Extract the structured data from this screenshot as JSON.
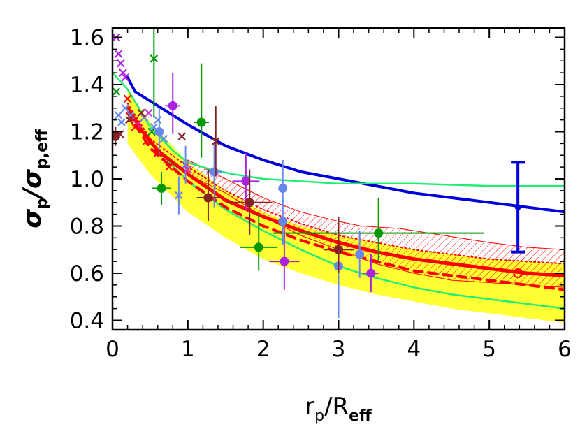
{
  "chart_data": {
    "type": "scatter",
    "title": "",
    "xlabel": {
      "main": "r",
      "sub1": "p",
      "mid": "/R",
      "sub2": "eff"
    },
    "ylabel": {
      "main": "σ",
      "sub1": "p",
      "mid": "/σ",
      "sub2": "p,eff"
    },
    "xlim": [
      0,
      6
    ],
    "ylim": [
      0.36,
      1.64
    ],
    "x_ticks": [
      {
        "v": 0,
        "label": "0"
      },
      {
        "v": 1,
        "label": "1"
      },
      {
        "v": 2,
        "label": "2"
      },
      {
        "v": 3,
        "label": "3"
      },
      {
        "v": 4,
        "label": "4"
      },
      {
        "v": 5,
        "label": "5"
      },
      {
        "v": 6,
        "label": "6"
      }
    ],
    "y_ticks": [
      {
        "v": 0.4,
        "label": "0.4"
      },
      {
        "v": 0.6,
        "label": "0.6"
      },
      {
        "v": 0.8,
        "label": "0.8"
      },
      {
        "v": 1.0,
        "label": "1.0"
      },
      {
        "v": 1.2,
        "label": "1.2"
      },
      {
        "v": 1.4,
        "label": "1.4"
      },
      {
        "v": 1.6,
        "label": "1.6"
      }
    ],
    "grid": false,
    "colors": {
      "red": "#ff0000",
      "blue": "#0000dd",
      "green": "#009900",
      "mint": "#22ee77",
      "yellow": "#ffff33",
      "purple": "#aa22dd",
      "lightblue": "#6688ee",
      "darkred": "#882222",
      "magenta": "#cc33dd"
    },
    "bands": [
      {
        "name": "yellow band",
        "color": "#ffff33",
        "upper": [
          [
            0.2,
            1.38
          ],
          [
            0.5,
            1.24
          ],
          [
            1.0,
            1.07
          ],
          [
            1.5,
            0.95
          ],
          [
            2.0,
            0.86
          ],
          [
            2.5,
            0.8
          ],
          [
            3.0,
            0.76
          ],
          [
            3.5,
            0.73
          ],
          [
            4.0,
            0.7
          ],
          [
            4.5,
            0.68
          ],
          [
            5.0,
            0.66
          ],
          [
            5.5,
            0.65
          ],
          [
            6.0,
            0.64
          ]
        ],
        "lower": [
          [
            0.2,
            1.15
          ],
          [
            0.5,
            1.02
          ],
          [
            1.0,
            0.86
          ],
          [
            1.5,
            0.75
          ],
          [
            2.0,
            0.66
          ],
          [
            2.5,
            0.6
          ],
          [
            3.0,
            0.55
          ],
          [
            3.5,
            0.51
          ],
          [
            4.0,
            0.48
          ],
          [
            4.5,
            0.45
          ],
          [
            5.0,
            0.43
          ],
          [
            5.5,
            0.41
          ],
          [
            6.0,
            0.39
          ]
        ]
      },
      {
        "name": "hatched band",
        "color": "#ff0000",
        "upper": [
          [
            1.0,
            1.08
          ],
          [
            1.5,
            1.0
          ],
          [
            2.0,
            0.92
          ],
          [
            2.5,
            0.86
          ],
          [
            3.0,
            0.82
          ],
          [
            3.3,
            0.8
          ],
          [
            3.8,
            0.79
          ],
          [
            4.2,
            0.77
          ],
          [
            4.6,
            0.75
          ],
          [
            5.0,
            0.73
          ],
          [
            5.5,
            0.71
          ],
          [
            6.0,
            0.7
          ]
        ],
        "lower": [
          [
            1.0,
            1.02
          ],
          [
            1.5,
            0.94
          ],
          [
            2.0,
            0.84
          ],
          [
            2.5,
            0.76
          ],
          [
            3.0,
            0.7
          ],
          [
            3.5,
            0.64
          ],
          [
            4.0,
            0.6
          ],
          [
            4.5,
            0.57
          ],
          [
            5.0,
            0.56
          ],
          [
            5.5,
            0.55
          ],
          [
            6.0,
            0.54
          ]
        ]
      }
    ],
    "lines": [
      {
        "name": "blue solid",
        "color": "#0000dd",
        "width": 4,
        "dash": "",
        "points": [
          [
            0.2,
            1.43
          ],
          [
            0.3,
            1.37
          ],
          [
            0.5,
            1.33
          ],
          [
            0.8,
            1.27
          ],
          [
            1.0,
            1.23
          ],
          [
            1.5,
            1.14
          ],
          [
            2.0,
            1.08
          ],
          [
            2.5,
            1.03
          ],
          [
            3.0,
            1.0
          ],
          [
            3.5,
            0.97
          ],
          [
            4.0,
            0.94
          ],
          [
            4.5,
            0.92
          ],
          [
            5.0,
            0.9
          ],
          [
            5.5,
            0.88
          ],
          [
            6.0,
            0.86
          ]
        ]
      },
      {
        "name": "mint upper",
        "color": "#22ee77",
        "width": 2.5,
        "dash": "",
        "points": [
          [
            0.0,
            1.45
          ],
          [
            0.2,
            1.38
          ],
          [
            0.5,
            1.22
          ],
          [
            0.8,
            1.12
          ],
          [
            1.0,
            1.07
          ],
          [
            1.3,
            1.04
          ],
          [
            1.6,
            1.02
          ],
          [
            2.0,
            1.0
          ],
          [
            2.5,
            0.99
          ],
          [
            3.0,
            0.98
          ],
          [
            4.0,
            0.98
          ],
          [
            5.0,
            0.97
          ],
          [
            6.0,
            0.97
          ]
        ]
      },
      {
        "name": "mint lower",
        "color": "#22ee77",
        "width": 2.5,
        "dash": "",
        "points": [
          [
            0.2,
            1.3
          ],
          [
            0.5,
            1.15
          ],
          [
            1.0,
            0.99
          ],
          [
            1.5,
            0.87
          ],
          [
            2.0,
            0.78
          ],
          [
            2.5,
            0.7
          ],
          [
            3.0,
            0.63
          ],
          [
            3.5,
            0.58
          ],
          [
            4.0,
            0.54
          ],
          [
            4.5,
            0.51
          ],
          [
            5.0,
            0.49
          ],
          [
            5.5,
            0.47
          ],
          [
            6.0,
            0.45
          ]
        ]
      },
      {
        "name": "red solid",
        "color": "#ff0000",
        "width": 5,
        "dash": "",
        "points": [
          [
            0.2,
            1.3
          ],
          [
            0.4,
            1.2
          ],
          [
            0.6,
            1.12
          ],
          [
            1.0,
            1.02
          ],
          [
            1.5,
            0.91
          ],
          [
            2.0,
            0.84
          ],
          [
            2.5,
            0.78
          ],
          [
            3.0,
            0.73
          ],
          [
            3.5,
            0.69
          ],
          [
            4.0,
            0.66
          ],
          [
            4.5,
            0.64
          ],
          [
            5.0,
            0.62
          ],
          [
            5.5,
            0.6
          ],
          [
            6.0,
            0.59
          ]
        ]
      },
      {
        "name": "red dashed",
        "color": "#ff0000",
        "width": 4,
        "dash": "12 9",
        "points": [
          [
            0.2,
            1.28
          ],
          [
            0.5,
            1.13
          ],
          [
            1.0,
            0.99
          ],
          [
            1.5,
            0.88
          ],
          [
            2.0,
            0.8
          ],
          [
            2.5,
            0.74
          ],
          [
            3.0,
            0.69
          ],
          [
            3.5,
            0.65
          ],
          [
            4.0,
            0.61
          ],
          [
            4.5,
            0.59
          ],
          [
            5.0,
            0.57
          ],
          [
            5.5,
            0.55
          ],
          [
            6.0,
            0.53
          ]
        ]
      },
      {
        "name": "red dotted",
        "color": "#ff0000",
        "width": 2,
        "dash": "2 4",
        "points": [
          [
            0.2,
            1.32
          ],
          [
            0.5,
            1.17
          ],
          [
            1.0,
            1.05
          ],
          [
            1.5,
            0.95
          ],
          [
            2.0,
            0.87
          ],
          [
            2.5,
            0.81
          ],
          [
            3.0,
            0.76
          ],
          [
            3.5,
            0.73
          ],
          [
            4.0,
            0.7
          ],
          [
            4.5,
            0.68
          ],
          [
            5.0,
            0.66
          ],
          [
            5.5,
            0.65
          ],
          [
            6.0,
            0.64
          ]
        ]
      }
    ],
    "points": [
      {
        "x": 0.65,
        "y": 0.96,
        "c": "#009900",
        "m": "dot",
        "xe": 0.12,
        "yl": 0.07,
        "yh": 0.07
      },
      {
        "x": 1.18,
        "y": 1.24,
        "c": "#009900",
        "m": "dot",
        "xe": 0.1,
        "yl": 0.15,
        "yh": 0.25
      },
      {
        "x": 1.94,
        "y": 0.71,
        "c": "#009900",
        "m": "dot",
        "xe": 0.25,
        "yl": 0.1,
        "yh": 0.14
      },
      {
        "x": 3.53,
        "y": 0.77,
        "c": "#009900",
        "m": "dot",
        "xe": 1.4,
        "yl": 0.12,
        "yh": 0.15
      },
      {
        "x": 0.8,
        "y": 1.31,
        "c": "#aa22dd",
        "m": "dot",
        "xe": 0.1,
        "yl": 0.12,
        "yh": 0.14
      },
      {
        "x": 1.77,
        "y": 0.99,
        "c": "#aa22dd",
        "m": "dot",
        "xe": 0.18,
        "yl": 0.12,
        "yh": 0.12
      },
      {
        "x": 2.28,
        "y": 0.65,
        "c": "#aa22dd",
        "m": "dot",
        "xe": 0.2,
        "yl": 0.12,
        "yh": 0.14
      },
      {
        "x": 3.43,
        "y": 0.6,
        "c": "#aa22dd",
        "m": "dot",
        "xe": 0.1,
        "yl": 0.08,
        "yh": 0.08
      },
      {
        "x": 0.62,
        "y": 1.2,
        "c": "#6688ee",
        "m": "dot",
        "xe": 0.05,
        "yl": 0.1,
        "yh": 0.1
      },
      {
        "x": 1.35,
        "y": 1.03,
        "c": "#6688ee",
        "m": "dot",
        "xe": 0.1,
        "yl": 0.15,
        "yh": 0.12
      },
      {
        "x": 2.26,
        "y": 0.96,
        "c": "#6688ee",
        "m": "dot",
        "xe": 0.05,
        "yl": 0.14,
        "yh": 0.12
      },
      {
        "x": 2.26,
        "y": 0.82,
        "c": "#6688ee",
        "m": "dot",
        "xe": 0.05,
        "yl": 0.1,
        "yh": 0.1
      },
      {
        "x": 3.0,
        "y": 0.63,
        "c": "#6688ee",
        "m": "dot",
        "xe": 0.05,
        "yl": 0.22,
        "yh": 0.18
      },
      {
        "x": 3.28,
        "y": 0.68,
        "c": "#6688ee",
        "m": "dot",
        "xe": 0.05,
        "yl": 0.1,
        "yh": 0.1
      },
      {
        "x": 1.27,
        "y": 0.92,
        "c": "#882222",
        "m": "dot",
        "xe": 0.15,
        "yl": 0.1,
        "yh": 0.12
      },
      {
        "x": 1.82,
        "y": 0.9,
        "c": "#882222",
        "m": "dot",
        "xe": 0.3,
        "yl": 0.14,
        "yh": 0.14
      },
      {
        "x": 3.0,
        "y": 0.7,
        "c": "#882222",
        "m": "dot",
        "xe": 0.2,
        "yl": 0.1,
        "yh": 0.14
      },
      {
        "x": 0.04,
        "y": 1.18,
        "c": "#882222",
        "m": "dot",
        "xe": 0.03,
        "yl": 0.04,
        "yh": 0.04
      },
      {
        "x": 0.05,
        "y": 1.6,
        "c": "#aa22dd",
        "m": "x"
      },
      {
        "x": 0.08,
        "y": 1.53,
        "c": "#aa22dd",
        "m": "x"
      },
      {
        "x": 0.11,
        "y": 1.49,
        "c": "#aa22dd",
        "m": "x"
      },
      {
        "x": 0.14,
        "y": 1.45,
        "c": "#aa22dd",
        "m": "x"
      },
      {
        "x": 0.17,
        "y": 1.43,
        "c": "#aa22dd",
        "m": "x"
      },
      {
        "x": 0.05,
        "y": 1.37,
        "c": "#009900",
        "m": "x"
      },
      {
        "x": 0.55,
        "y": 1.51,
        "c": "#009900",
        "m": "x",
        "yl": 0.25,
        "yh": 0.25
      },
      {
        "x": 0.52,
        "y": 1.2,
        "c": "#009900",
        "m": "x"
      },
      {
        "x": 0.08,
        "y": 1.27,
        "c": "#6688ee",
        "m": "x"
      },
      {
        "x": 0.12,
        "y": 1.24,
        "c": "#6688ee",
        "m": "x"
      },
      {
        "x": 0.17,
        "y": 1.3,
        "c": "#6688ee",
        "m": "x"
      },
      {
        "x": 0.24,
        "y": 1.27,
        "c": "#6688ee",
        "m": "x"
      },
      {
        "x": 0.42,
        "y": 1.26,
        "c": "#6688ee",
        "m": "x"
      },
      {
        "x": 0.55,
        "y": 1.22,
        "c": "#6688ee",
        "m": "x"
      },
      {
        "x": 0.6,
        "y": 1.25,
        "c": "#6688ee",
        "m": "x"
      },
      {
        "x": 0.68,
        "y": 1.17,
        "c": "#6688ee",
        "m": "x"
      },
      {
        "x": 0.88,
        "y": 0.93,
        "c": "#6688ee",
        "m": "x",
        "yl": 0.08,
        "yh": 0.08
      },
      {
        "x": 0.97,
        "y": 1.06,
        "c": "#6688ee",
        "m": "x",
        "yl": 0.08,
        "yh": 0.08
      },
      {
        "x": 0.92,
        "y": 1.18,
        "c": "#882222",
        "m": "x"
      },
      {
        "x": 0.38,
        "y": 1.28,
        "c": "#882222",
        "m": "x"
      },
      {
        "x": 0.22,
        "y": 1.25,
        "c": "#882222",
        "m": "x"
      },
      {
        "x": 0.1,
        "y": 1.19,
        "c": "#882222",
        "m": "x"
      },
      {
        "x": 1.37,
        "y": 1.16,
        "c": "#882222",
        "m": "x",
        "yl": 0.15,
        "yh": 0.15
      },
      {
        "x": 0.33,
        "y": 1.23,
        "c": "#cc33dd",
        "m": "x"
      },
      {
        "x": 0.48,
        "y": 1.28,
        "c": "#cc33dd",
        "m": "x"
      },
      {
        "x": 1.0,
        "y": 1.04,
        "c": "#cc33dd",
        "m": "x"
      },
      {
        "x": 0.2,
        "y": 1.34,
        "c": "#ff0000",
        "m": "x"
      },
      {
        "x": 0.3,
        "y": 1.22,
        "c": "#ff0000",
        "m": "x"
      },
      {
        "x": 0.45,
        "y": 1.16,
        "c": "#ff0000",
        "m": "x"
      },
      {
        "x": 0.6,
        "y": 1.11,
        "c": "#ff0000",
        "m": "x"
      },
      {
        "x": 0.75,
        "y": 1.05,
        "c": "#ff0000",
        "m": "x"
      },
      {
        "x": 5.38,
        "y": 0.6,
        "c": "#ff0000",
        "m": "open"
      }
    ],
    "big_errorbar": {
      "x": 5.38,
      "y": 0.88,
      "ylo": 0.69,
      "yhi": 1.07,
      "color": "#0000dd"
    }
  }
}
